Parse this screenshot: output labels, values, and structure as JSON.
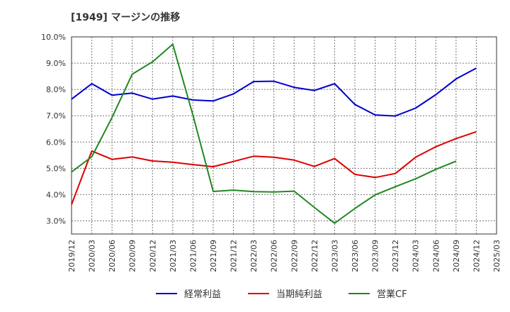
{
  "title": "[1949]  マージンの推移",
  "colors": {
    "keijo": "#0000cc",
    "junri": "#dd0000",
    "eigyo_cf": "#228822"
  },
  "legend": [
    {
      "label": "経常利益",
      "color": "#0000cc"
    },
    {
      "label": "当期純利益",
      "color": "#dd0000"
    },
    {
      "label": "営業CF",
      "color": "#228822"
    }
  ],
  "chart_data": {
    "type": "line",
    "title": "[1949]  マージンの推移",
    "xlabel": "",
    "ylabel": "",
    "ylim": [
      2.5,
      10.0
    ],
    "y_ticks": [
      3.0,
      4.0,
      5.0,
      6.0,
      7.0,
      8.0,
      9.0,
      10.0
    ],
    "y_tick_labels": [
      "3.0%",
      "4.0%",
      "5.0%",
      "6.0%",
      "7.0%",
      "8.0%",
      "9.0%",
      "10.0%"
    ],
    "x_tick_labels": [
      "2019/12",
      "2020/03",
      "2020/06",
      "2020/09",
      "2020/12",
      "2021/03",
      "2021/06",
      "2021/09",
      "2021/12",
      "2022/03",
      "2022/06",
      "2022/09",
      "2022/12",
      "2023/03",
      "2023/06",
      "2023/09",
      "2023/12",
      "2024/03",
      "2024/06",
      "2024/09",
      "2024/12",
      "2025/03"
    ],
    "grid": true,
    "legend_position": "bottom",
    "series": [
      {
        "name": "経常利益",
        "color": "#0000cc",
        "values": [
          7.63,
          8.22,
          7.78,
          7.86,
          7.63,
          7.75,
          7.6,
          7.56,
          7.83,
          8.3,
          8.31,
          8.08,
          7.96,
          8.22,
          7.43,
          7.03,
          6.99,
          7.29,
          7.8,
          8.4,
          8.81,
          null
        ]
      },
      {
        "name": "当期純利益",
        "color": "#dd0000",
        "values": [
          3.62,
          5.66,
          5.34,
          5.43,
          5.28,
          5.23,
          5.14,
          5.06,
          5.26,
          5.46,
          5.42,
          5.31,
          5.07,
          5.37,
          4.77,
          4.65,
          4.8,
          5.42,
          5.82,
          6.13,
          6.39,
          null
        ]
      },
      {
        "name": "営業CF",
        "color": "#228822",
        "values": [
          4.86,
          5.44,
          6.93,
          8.58,
          9.05,
          9.72,
          7.02,
          4.12,
          4.17,
          4.11,
          4.1,
          4.13,
          3.51,
          2.91,
          3.47,
          3.99,
          4.3,
          4.6,
          4.96,
          5.27,
          null,
          null
        ]
      }
    ]
  }
}
